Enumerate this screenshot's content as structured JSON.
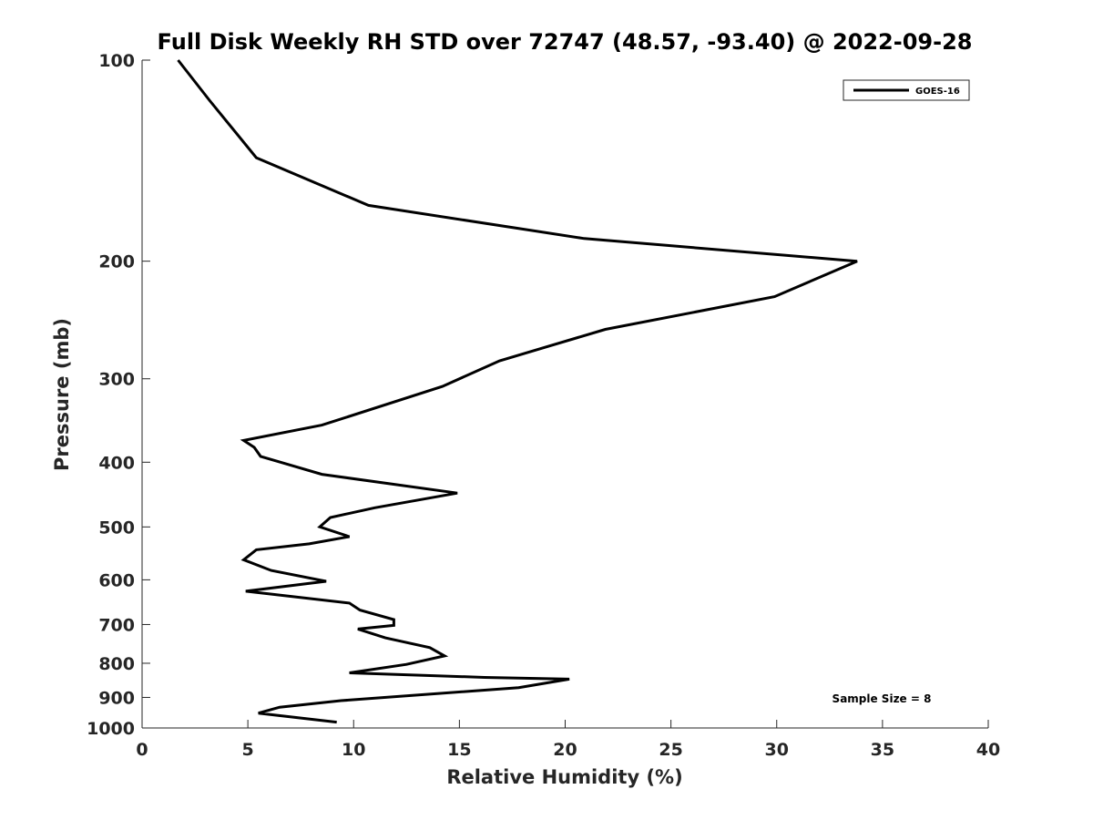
{
  "chart_data": {
    "type": "line",
    "title": "Full Disk Weekly RH STD over 72747 (48.57, -93.40) @ 2022-09-28",
    "xlabel": "Relative Humidity (%)",
    "ylabel": "Pressure (mb)",
    "xlim": [
      0,
      40
    ],
    "ylim": [
      100,
      1000
    ],
    "y_scale": "log",
    "y_reversed": true,
    "x_ticks": [
      0,
      5,
      10,
      15,
      20,
      25,
      30,
      35,
      40
    ],
    "x_tick_labels": [
      "0",
      "5",
      "10",
      "15",
      "20",
      "25",
      "30",
      "35",
      "40"
    ],
    "y_ticks": [
      100,
      200,
      300,
      400,
      500,
      600,
      700,
      800,
      900,
      1000
    ],
    "y_tick_labels": [
      "100",
      "200",
      "300",
      "400",
      "500",
      "600",
      "700",
      "800",
      "900",
      "1000"
    ],
    "grid": false,
    "legend_position": "top-right",
    "series": [
      {
        "name": "GOES-16",
        "color": "#000000",
        "x": [
          1.7,
          3.2,
          5.4,
          10.7,
          20.9,
          33.8,
          29.9,
          21.9,
          16.9,
          14.2,
          8.5,
          4.8,
          5.3,
          5.6,
          8.5,
          14.9,
          11.0,
          8.9,
          8.4,
          9.8,
          7.9,
          5.4,
          4.8,
          6.1,
          8.7,
          4.9,
          9.8,
          10.3,
          11.9,
          11.9,
          10.2,
          11.5,
          13.6,
          14.3,
          12.5,
          9.8,
          16.2,
          20.2,
          17.8,
          9.4,
          6.5,
          5.5,
          9.2
        ],
        "y": [
          100,
          115,
          140,
          165,
          185,
          200,
          226,
          253,
          282,
          308,
          352,
          371,
          380,
          392,
          417,
          445,
          468,
          484,
          500,
          517,
          530,
          541,
          560,
          581,
          603,
          624,
          650,
          666,
          688,
          702,
          711,
          733,
          758,
          780,
          803,
          827,
          840,
          845,
          870,
          910,
          931,
          950,
          980
        ]
      }
    ]
  },
  "annotations": {
    "sample_size": "Sample Size = 8"
  }
}
